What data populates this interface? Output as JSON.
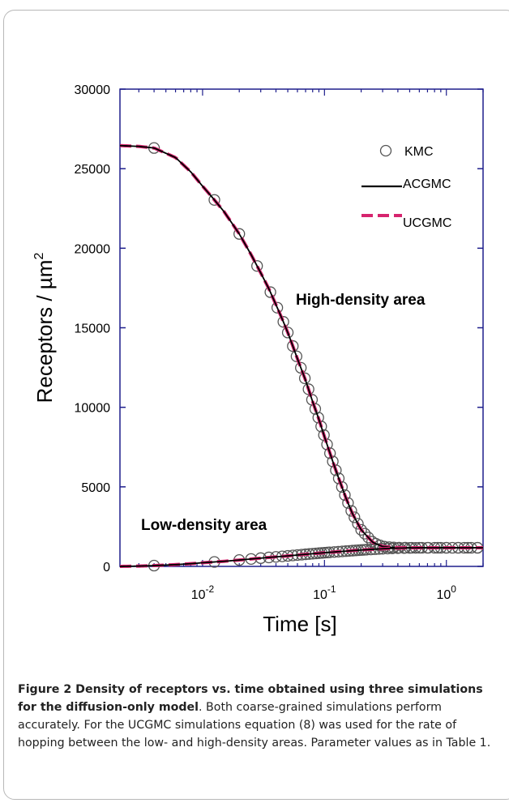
{
  "chart_data": {
    "type": "line",
    "title": "",
    "xlabel": "Time [s]",
    "ylabel_main": "Receptors / µm",
    "ylabel_sup": "2",
    "xscale": "log",
    "xlim": [
      0.0021,
      2.0
    ],
    "ylim": [
      0,
      30000
    ],
    "yticks": [
      0,
      5000,
      10000,
      15000,
      20000,
      25000,
      30000
    ],
    "xticks": [
      {
        "value": 0.01,
        "base": "10",
        "exp": "-2"
      },
      {
        "value": 0.1,
        "base": "10",
        "exp": "-1"
      },
      {
        "value": 1,
        "base": "10",
        "exp": "0"
      }
    ],
    "grid": false,
    "legend_position": "top-right",
    "legend": [
      {
        "name": "KMC",
        "style": "circle"
      },
      {
        "name": "ACGMC",
        "style": "solid"
      },
      {
        "name": "UCGMC",
        "style": "dashed"
      }
    ],
    "annotations": [
      {
        "text": "High-density area",
        "x": 0.14,
        "y": 16500
      },
      {
        "text": "Low-density area",
        "x": 0.0058,
        "y": 2600
      }
    ],
    "series": [
      {
        "name": "High-density area",
        "x": [
          0.0021,
          0.003,
          0.004,
          0.006,
          0.008,
          0.01,
          0.012,
          0.015,
          0.02,
          0.025,
          0.03,
          0.035,
          0.04,
          0.045,
          0.05,
          0.055,
          0.06,
          0.07,
          0.08,
          0.09,
          0.1,
          0.11,
          0.12,
          0.13,
          0.15,
          0.17,
          0.2,
          0.25,
          0.3,
          0.35,
          0.4,
          0.5,
          0.6,
          0.8,
          1.0,
          1.3,
          1.6,
          2.0
        ],
        "y": [
          26450,
          26400,
          26300,
          25700,
          24800,
          23900,
          23200,
          22300,
          20900,
          19600,
          18450,
          17450,
          16450,
          15550,
          14700,
          13850,
          13050,
          11700,
          10350,
          9250,
          8150,
          7200,
          6350,
          5600,
          4300,
          3300,
          2300,
          1500,
          1250,
          1200,
          1180,
          1170,
          1170,
          1170,
          1170,
          1170,
          1170,
          1170
        ]
      },
      {
        "name": "Low-density area",
        "x": [
          0.0021,
          0.003,
          0.004,
          0.006,
          0.008,
          0.01,
          0.015,
          0.02,
          0.03,
          0.04,
          0.05,
          0.07,
          0.1,
          0.15,
          0.2,
          0.3,
          0.4,
          0.6,
          1.0,
          1.5,
          2.0
        ],
        "y": [
          0,
          20,
          50,
          110,
          170,
          230,
          320,
          400,
          520,
          600,
          660,
          760,
          860,
          960,
          1030,
          1110,
          1150,
          1170,
          1170,
          1170,
          1170
        ]
      }
    ],
    "kmc_markers": {
      "high_x": [
        0.004,
        0.0125,
        0.02,
        0.028,
        0.036,
        0.041,
        0.046,
        0.05,
        0.055,
        0.059,
        0.064,
        0.069,
        0.074,
        0.079,
        0.084,
        0.089,
        0.094,
        0.099,
        0.105,
        0.111,
        0.117,
        0.124,
        0.131,
        0.139,
        0.147,
        0.156,
        0.166,
        0.176,
        0.188,
        0.2,
        0.214,
        0.229,
        0.246,
        0.264,
        0.285,
        0.31,
        0.34,
        0.37,
        0.41,
        0.46,
        0.52,
        0.6,
        0.7,
        0.85,
        1.0,
        1.25,
        1.5,
        1.8
      ],
      "low_x": [
        0.004,
        0.0125,
        0.02,
        0.025,
        0.03,
        0.035,
        0.04,
        0.045,
        0.05,
        0.055,
        0.06,
        0.065,
        0.07,
        0.075,
        0.08,
        0.085,
        0.09,
        0.095,
        0.1,
        0.105,
        0.11,
        0.12,
        0.13,
        0.14,
        0.15,
        0.16,
        0.17,
        0.18,
        0.19,
        0.2,
        0.21,
        0.22,
        0.24,
        0.26,
        0.28,
        0.3,
        0.33,
        0.36,
        0.4,
        0.45,
        0.5,
        0.56,
        0.63,
        0.71,
        0.8,
        0.9,
        1.0,
        1.12,
        1.25,
        1.4,
        1.6,
        1.8
      ]
    },
    "colors": {
      "axes": "#1e1e8c",
      "kmc": "#555555",
      "acgmc": "#000000",
      "ucgmc": "#d6246e"
    }
  },
  "caption": {
    "lead": "Figure 2 Density of receptors vs. time obtained using three simulations for the diffusion-only model",
    "body": ". Both coarse-grained simulations perform accurately. For the UCGMC simulations equation (8) was used for the rate of hopping between the low- and high-density areas. Parameter values as in Table 1."
  }
}
